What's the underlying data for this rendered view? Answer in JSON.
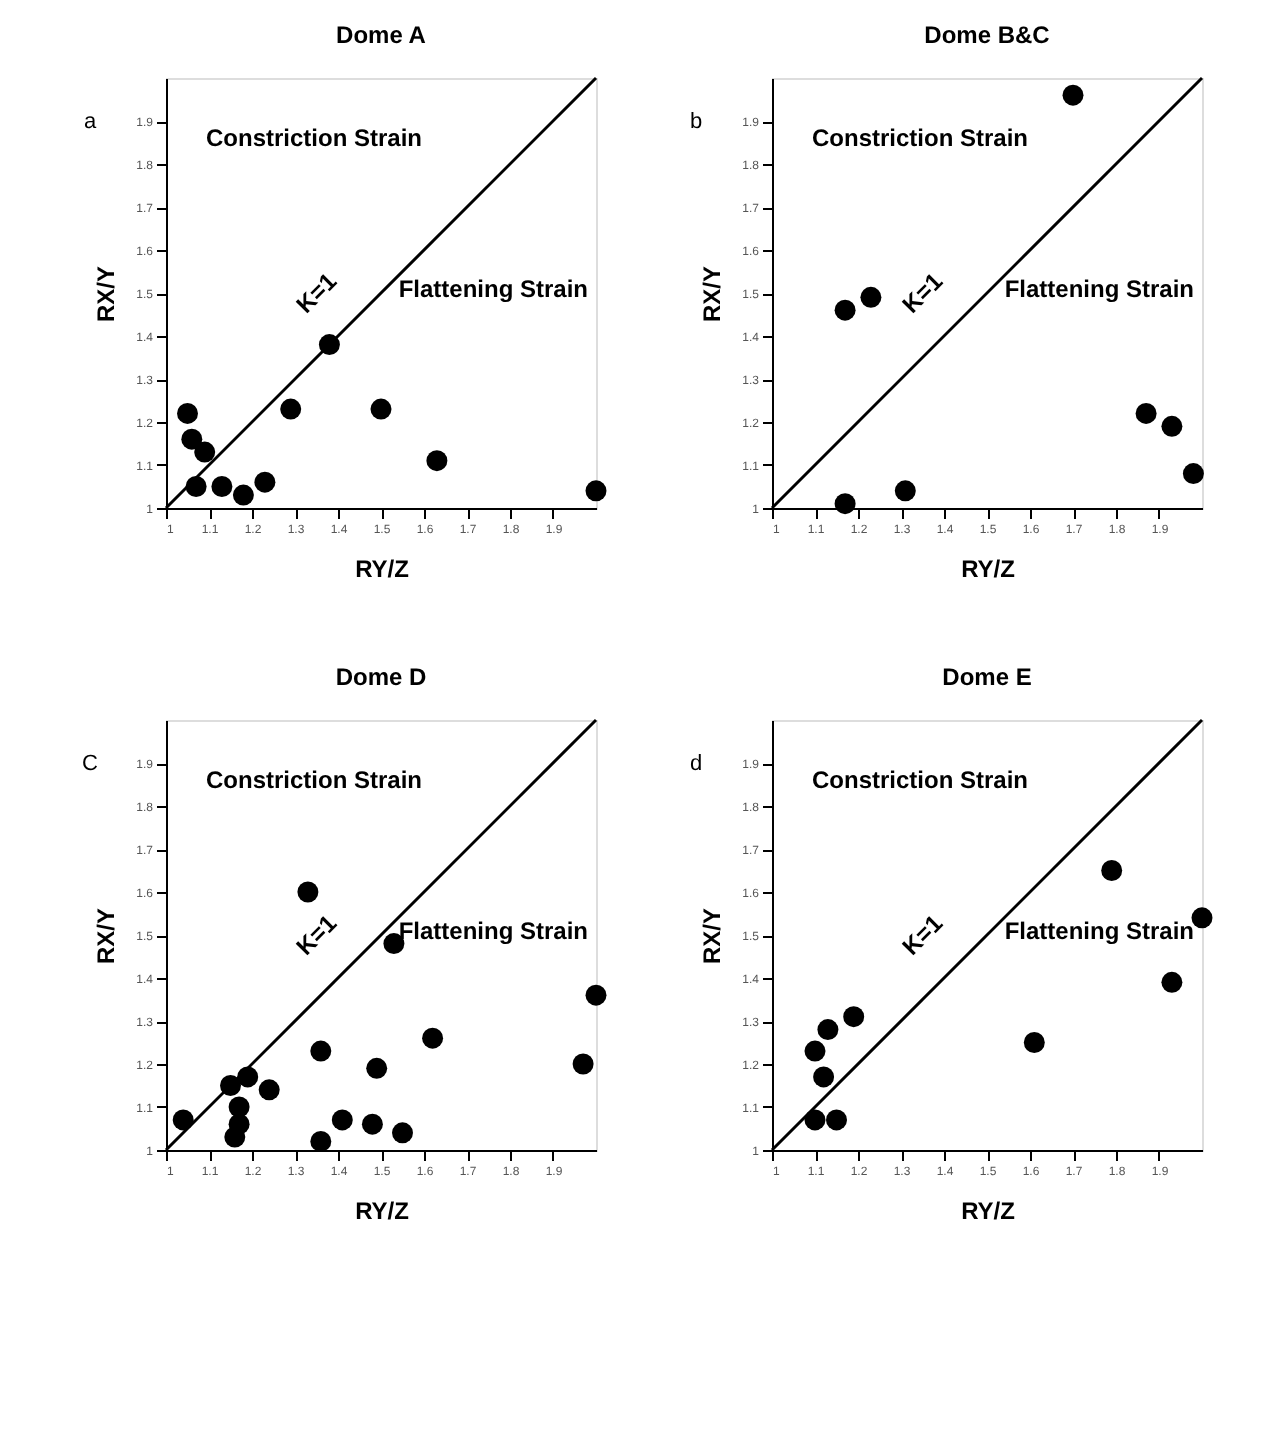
{
  "chart_data": [
    {
      "type": "scatter",
      "title": "Dome A",
      "xlabel": "RY/Z",
      "ylabel": "RX/Y",
      "xlim": [
        1,
        2
      ],
      "ylim": [
        1,
        2
      ],
      "xticks": [
        1,
        1.1,
        1.2,
        1.3,
        1.4,
        1.5,
        1.6,
        1.7,
        1.8,
        1.9
      ],
      "yticks": [
        1,
        1.1,
        1.2,
        1.3,
        1.4,
        1.5,
        1.6,
        1.7,
        1.8,
        1.9
      ],
      "grid": false,
      "annotations": [
        "a",
        "Constriction Strain",
        "Flattening Strain",
        "K=1"
      ],
      "series": [
        {
          "type": "line",
          "x": [
            1,
            2
          ],
          "values": [
            1,
            2
          ],
          "color": "#000000"
        },
        {
          "type": "scatter",
          "marker": "circle",
          "x": [
            1.05,
            1.06,
            1.09,
            1.07,
            1.13,
            1.18,
            1.23,
            1.29,
            1.38,
            1.5,
            1.63,
            2.0
          ],
          "values": [
            1.22,
            1.16,
            1.13,
            1.05,
            1.05,
            1.03,
            1.06,
            1.23,
            1.38,
            1.23,
            1.11,
            1.04
          ],
          "color": "#000000"
        }
      ]
    },
    {
      "type": "scatter",
      "title": "Dome B&C",
      "xlabel": "RY/Z",
      "ylabel": "RX/Y",
      "xlim": [
        1,
        2
      ],
      "ylim": [
        1,
        2
      ],
      "xticks": [
        1,
        1.1,
        1.2,
        1.3,
        1.4,
        1.5,
        1.6,
        1.7,
        1.8,
        1.9
      ],
      "yticks": [
        1,
        1.1,
        1.2,
        1.3,
        1.4,
        1.5,
        1.6,
        1.7,
        1.8,
        1.9
      ],
      "grid": false,
      "annotations": [
        "b",
        "Constriction Strain",
        "Flattening Strain",
        "K=1"
      ],
      "series": [
        {
          "type": "line",
          "x": [
            1,
            2
          ],
          "values": [
            1,
            2
          ],
          "color": "#000000"
        },
        {
          "type": "scatter",
          "marker": "circle",
          "x": [
            1.7,
            1.17,
            1.23,
            1.87,
            1.93,
            1.98,
            1.17,
            1.31
          ],
          "values": [
            1.96,
            1.46,
            1.49,
            1.22,
            1.19,
            1.08,
            1.01,
            1.04
          ],
          "color": "#000000"
        }
      ]
    },
    {
      "type": "scatter",
      "title": "Dome D",
      "xlabel": "RY/Z",
      "ylabel": "RX/Y",
      "xlim": [
        1,
        2
      ],
      "ylim": [
        1,
        2
      ],
      "xticks": [
        1,
        1.1,
        1.2,
        1.3,
        1.4,
        1.5,
        1.6,
        1.7,
        1.8,
        1.9
      ],
      "yticks": [
        1,
        1.1,
        1.2,
        1.3,
        1.4,
        1.5,
        1.6,
        1.7,
        1.8,
        1.9
      ],
      "grid": false,
      "annotations": [
        "C",
        "Constriction Strain",
        "Flattening Strain",
        "K=1"
      ],
      "series": [
        {
          "type": "line",
          "x": [
            1,
            2
          ],
          "values": [
            1,
            2
          ],
          "color": "#000000"
        },
        {
          "type": "scatter",
          "marker": "circle",
          "x": [
            1.04,
            1.15,
            1.19,
            1.24,
            1.17,
            1.17,
            1.16,
            1.33,
            1.53,
            1.36,
            1.49,
            1.62,
            2.0,
            1.97,
            1.41,
            1.48,
            1.55,
            1.36
          ],
          "values": [
            1.07,
            1.15,
            1.17,
            1.14,
            1.1,
            1.06,
            1.03,
            1.6,
            1.48,
            1.23,
            1.19,
            1.26,
            1.36,
            1.2,
            1.07,
            1.06,
            1.04,
            1.02
          ],
          "color": "#000000"
        }
      ]
    },
    {
      "type": "scatter",
      "title": "Dome E",
      "xlabel": "RY/Z",
      "ylabel": "RX/Y",
      "xlim": [
        1,
        2
      ],
      "ylim": [
        1,
        2
      ],
      "xticks": [
        1,
        1.1,
        1.2,
        1.3,
        1.4,
        1.5,
        1.6,
        1.7,
        1.8,
        1.9
      ],
      "yticks": [
        1,
        1.1,
        1.2,
        1.3,
        1.4,
        1.5,
        1.6,
        1.7,
        1.8,
        1.9
      ],
      "grid": false,
      "annotations": [
        "d",
        "Constriction Strain",
        "Flattening Strain",
        "K=1"
      ],
      "series": [
        {
          "type": "line",
          "x": [
            1,
            2
          ],
          "values": [
            1,
            2
          ],
          "color": "#000000"
        },
        {
          "type": "scatter",
          "marker": "circle",
          "x": [
            1.79,
            2.0,
            1.93,
            1.61,
            1.19,
            1.13,
            1.1,
            1.12,
            1.1,
            1.15
          ],
          "values": [
            1.65,
            1.54,
            1.39,
            1.25,
            1.31,
            1.28,
            1.23,
            1.17,
            1.07,
            1.07
          ],
          "color": "#000000"
        }
      ]
    }
  ]
}
